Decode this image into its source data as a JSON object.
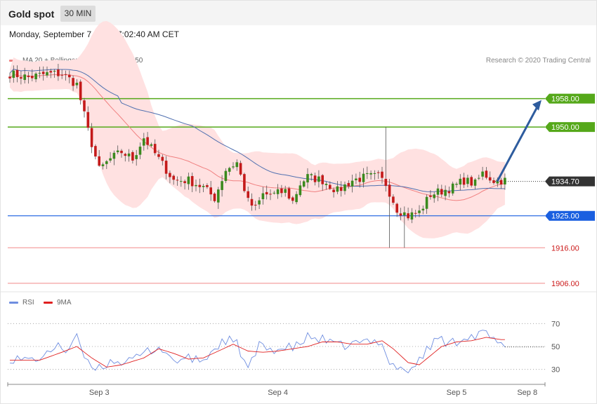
{
  "header": {
    "title": "Gold spot",
    "timeframe": "30 MIN"
  },
  "datetime": "Monday, September 7, 2020 7:02:40 AM CET",
  "legend": [
    {
      "label": "MA 20 + Bollinger Bands",
      "color": "#f08080"
    },
    {
      "label": "MA 50",
      "color": "#2f5b9b"
    }
  ],
  "credit": "Research © 2020 Trading Central",
  "colors": {
    "up": "#3a8a1e",
    "down": "#c41a1a",
    "resistance": "#55a81a",
    "support": "#1a5fe0",
    "support_faint": "#f4a0a0",
    "band": "#ffe1e1",
    "ma20": "#f08080",
    "ma50": "#5070b0",
    "arrow": "#2e5c9e",
    "rsi": "#6f8ee0",
    "rsi_ma": "#e02020"
  },
  "chart_data": {
    "type": "candlestick",
    "y_range": [
      1904,
      1968
    ],
    "x_labels": [
      {
        "label": "Sep 3",
        "index": 24
      },
      {
        "label": "Sep 4",
        "index": 72
      },
      {
        "label": "Sep 5",
        "index": 120
      },
      {
        "label": "Sep 8",
        "index": 139
      }
    ],
    "levels": [
      {
        "value": 1958.0,
        "label": "1958.00",
        "kind": "resistance"
      },
      {
        "value": 1950.0,
        "label": "1950.00",
        "kind": "resistance"
      },
      {
        "value": 1934.7,
        "label": "1934.70",
        "kind": "current"
      },
      {
        "value": 1925.0,
        "label": "1925.00",
        "kind": "support"
      },
      {
        "value": 1916.0,
        "label": "1916.00",
        "kind": "support_faint"
      },
      {
        "value": 1906.0,
        "label": "1906.00",
        "kind": "support_faint"
      }
    ],
    "close_anchors": [
      [
        0,
        1965
      ],
      [
        5,
        1964
      ],
      [
        10,
        1965
      ],
      [
        14,
        1965
      ],
      [
        18,
        1962
      ],
      [
        21,
        1949
      ],
      [
        24,
        1938
      ],
      [
        27,
        1941
      ],
      [
        30,
        1943
      ],
      [
        33,
        1941
      ],
      [
        36,
        1947
      ],
      [
        40,
        1941
      ],
      [
        44,
        1935
      ],
      [
        48,
        1935
      ],
      [
        52,
        1933
      ],
      [
        55,
        1930
      ],
      [
        58,
        1938
      ],
      [
        61,
        1940
      ],
      [
        64,
        1929
      ],
      [
        66,
        1927
      ],
      [
        68,
        1931
      ],
      [
        71,
        1931
      ],
      [
        74,
        1932
      ],
      [
        76,
        1929
      ],
      [
        78,
        1934
      ],
      [
        80,
        1936
      ],
      [
        84,
        1935
      ],
      [
        88,
        1932
      ],
      [
        92,
        1935
      ],
      [
        96,
        1936
      ],
      [
        99,
        1936
      ],
      [
        101,
        1934
      ],
      [
        104,
        1927
      ],
      [
        107,
        1925
      ],
      [
        110,
        1926
      ],
      [
        113,
        1931
      ],
      [
        116,
        1932
      ],
      [
        119,
        1933
      ],
      [
        122,
        1935
      ],
      [
        125,
        1934
      ],
      [
        127,
        1937
      ],
      [
        130,
        1935
      ],
      [
        132,
        1935
      ]
    ],
    "rsi": {
      "y_range": [
        20,
        80
      ],
      "levels": [
        70,
        50,
        30
      ],
      "series_names": [
        "RSI",
        "9MA"
      ],
      "rsi_anchors": [
        [
          0,
          40
        ],
        [
          5,
          38
        ],
        [
          10,
          42
        ],
        [
          13,
          54
        ],
        [
          15,
          45
        ],
        [
          18,
          57
        ],
        [
          21,
          34
        ],
        [
          24,
          32
        ],
        [
          28,
          38
        ],
        [
          32,
          36
        ],
        [
          36,
          44
        ],
        [
          40,
          50
        ],
        [
          44,
          38
        ],
        [
          48,
          39
        ],
        [
          52,
          38
        ],
        [
          55,
          48
        ],
        [
          58,
          56
        ],
        [
          61,
          52
        ],
        [
          64,
          30
        ],
        [
          67,
          50
        ],
        [
          70,
          48
        ],
        [
          74,
          48
        ],
        [
          77,
          50
        ],
        [
          80,
          58
        ],
        [
          84,
          56
        ],
        [
          88,
          50
        ],
        [
          92,
          52
        ],
        [
          96,
          54
        ],
        [
          100,
          55
        ],
        [
          102,
          35
        ],
        [
          106,
          30
        ],
        [
          108,
          28
        ],
        [
          110,
          40
        ],
        [
          113,
          50
        ],
        [
          115,
          58
        ],
        [
          118,
          52
        ],
        [
          120,
          55
        ],
        [
          123,
          60
        ],
        [
          125,
          58
        ],
        [
          127,
          62
        ],
        [
          129,
          58
        ],
        [
          132,
          50
        ]
      ],
      "ma_anchors": [
        [
          0,
          38
        ],
        [
          8,
          38
        ],
        [
          14,
          45
        ],
        [
          18,
          50
        ],
        [
          22,
          40
        ],
        [
          26,
          32
        ],
        [
          30,
          34
        ],
        [
          36,
          40
        ],
        [
          40,
          48
        ],
        [
          44,
          44
        ],
        [
          48,
          39
        ],
        [
          52,
          40
        ],
        [
          56,
          46
        ],
        [
          60,
          52
        ],
        [
          64,
          46
        ],
        [
          68,
          45
        ],
        [
          72,
          46
        ],
        [
          76,
          48
        ],
        [
          80,
          50
        ],
        [
          84,
          54
        ],
        [
          88,
          54
        ],
        [
          92,
          52
        ],
        [
          96,
          52
        ],
        [
          100,
          55
        ],
        [
          103,
          48
        ],
        [
          107,
          36
        ],
        [
          110,
          34
        ],
        [
          113,
          42
        ],
        [
          116,
          50
        ],
        [
          120,
          54
        ],
        [
          124,
          55
        ],
        [
          128,
          58
        ],
        [
          132,
          56
        ]
      ]
    }
  }
}
